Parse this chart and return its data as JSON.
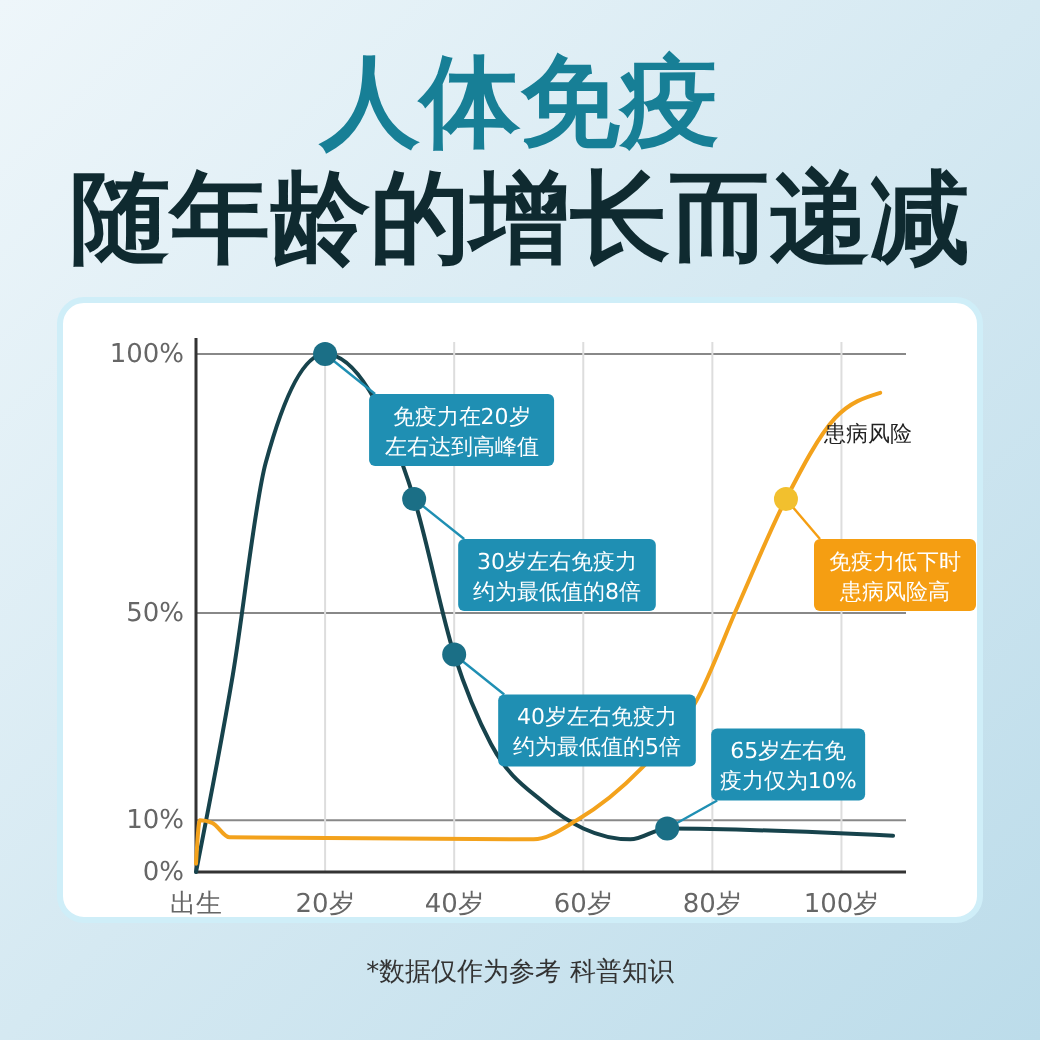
{
  "chart_data": {
    "type": "line",
    "title": "人体免疫",
    "subtitle": "随年龄的增长而递减",
    "x": [
      0,
      5.7,
      10.8,
      20,
      33.8,
      40,
      45.7,
      53.9,
      60,
      67.3,
      73,
      108
    ],
    "xlim": [
      0,
      110
    ],
    "ylim": [
      0,
      100
    ],
    "xticks": [
      {
        "value": 0,
        "label": "出生"
      },
      {
        "value": 20,
        "label": "20岁"
      },
      {
        "value": 40,
        "label": "40岁"
      },
      {
        "value": 60,
        "label": "60岁"
      },
      {
        "value": 80,
        "label": "80岁"
      },
      {
        "value": 100,
        "label": "100岁"
      }
    ],
    "yticks": [
      {
        "value": 0,
        "label": "0%"
      },
      {
        "value": 10,
        "label": "10%"
      },
      {
        "value": 50,
        "label": "50%"
      },
      {
        "value": 100,
        "label": "100%"
      }
    ],
    "grid": true,
    "series": [
      {
        "color": "#17434c",
        "values": [
          0,
          38,
          79,
          100,
          72,
          42,
          24.7,
          13.4,
          8.4,
          6.3,
          8.4,
          7
        ]
      },
      {
        "name": "患病风险",
        "color": "#f3a21c",
        "x": [
          0,
          0.6,
          2.5,
          5.2,
          52.3,
          59,
          69,
          77.5,
          84,
          91.4,
          99,
          106
        ],
        "values": [
          1.6,
          10,
          9.5,
          6.7,
          6.3,
          10,
          20,
          33,
          51.5,
          72,
          87.6,
          92.5
        ]
      }
    ],
    "annotations": [
      {
        "text": "免疫力在20岁左右达到高峰值",
        "x": 20,
        "y": 100
      },
      {
        "text": "30岁左右免疫力约为最低值的8倍",
        "x": 33.8,
        "y": 72
      },
      {
        "text": "40岁左右免疫力约为最低值的5倍",
        "x": 40,
        "y": 42
      },
      {
        "text": "65岁左右免疫力仅为10%",
        "x": 73,
        "y": 8.4
      },
      {
        "text": "免疫力低下时患病风险高",
        "x": 91.4,
        "y": 72
      },
      "*数据仅作为参考 科普知识"
    ]
  }
}
